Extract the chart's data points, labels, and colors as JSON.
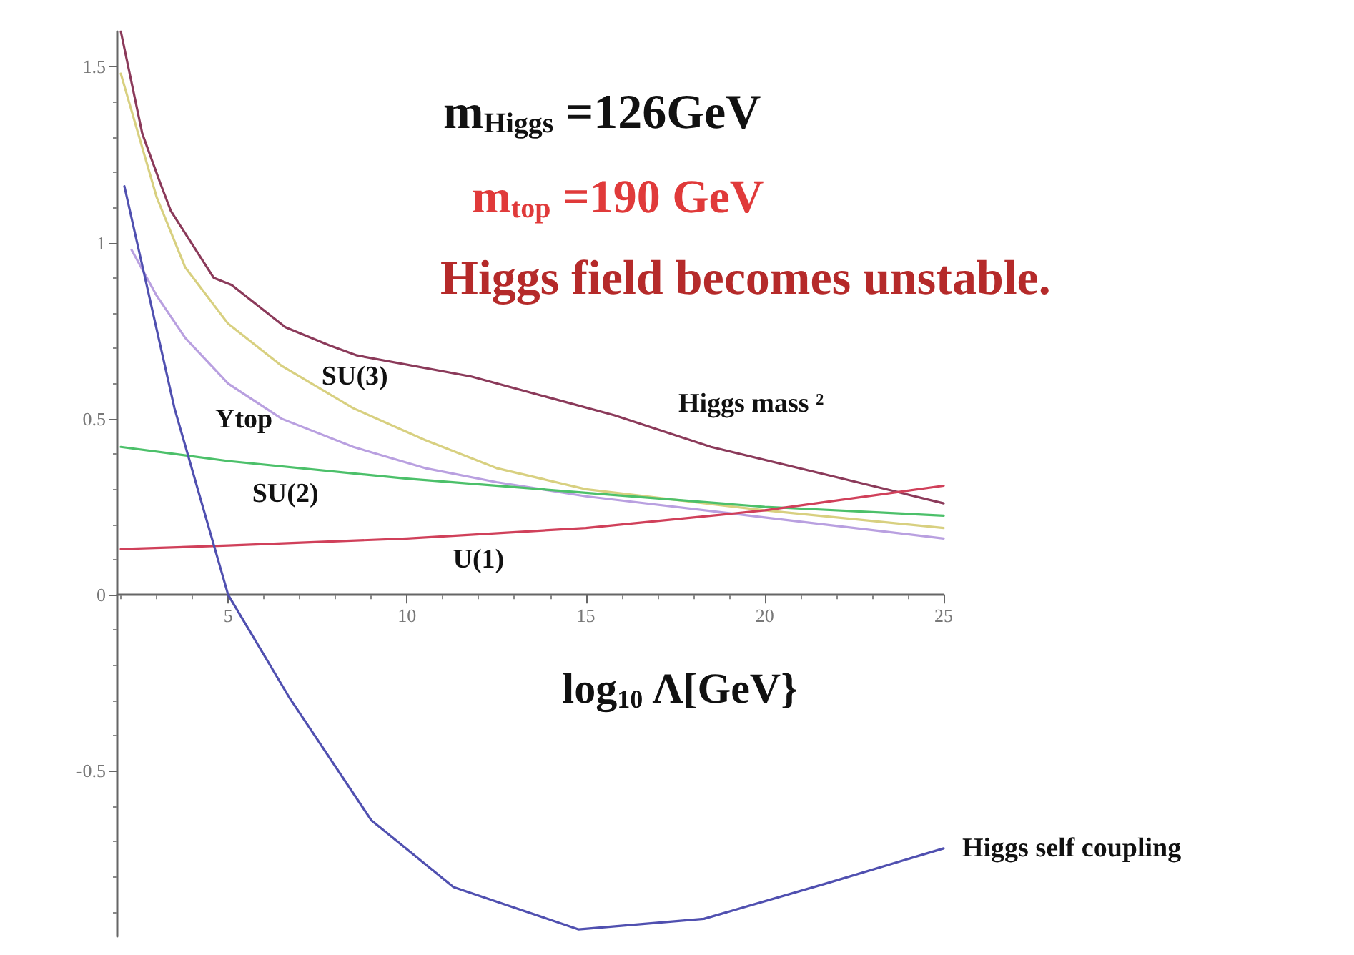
{
  "chart_data": {
    "type": "line",
    "title": "m$_{Higgs}$ =126GeV",
    "subtitle": "m$_{top}$ =190 GeV",
    "xlabel": "log$_{10}$ Λ[GeV}",
    "xlim": [
      1.9,
      25
    ],
    "xticks": [
      5,
      10,
      15,
      20,
      25
    ],
    "ylim": [
      -0.97,
      1.6
    ],
    "yticks": [
      -0.5,
      0,
      0.5,
      1,
      1.5
    ],
    "grid": false,
    "legend": false,
    "marker": "none",
    "line_style": "solid",
    "series": [
      {
        "name": "Higgs mass ²",
        "color": "#8b3a5a",
        "x": [
          2,
          2.6,
          3.1,
          3.4,
          4.6,
          5.1,
          6.6,
          7.8,
          8.6,
          11.8,
          15.8,
          18.5,
          23.8,
          25
        ],
        "values": [
          1.6,
          1.31,
          1.17,
          1.09,
          0.9,
          0.88,
          0.76,
          0.71,
          0.68,
          0.62,
          0.51,
          0.42,
          0.29,
          0.26
        ]
      },
      {
        "name": "SU(3)",
        "color": "#d8d080",
        "x": [
          2,
          3,
          3.8,
          5,
          6.5,
          8.5,
          10.5,
          12.5,
          15,
          20,
          25
        ],
        "values": [
          1.48,
          1.13,
          0.93,
          0.77,
          0.65,
          0.53,
          0.44,
          0.36,
          0.3,
          0.24,
          0.19
        ]
      },
      {
        "name": "Ytop",
        "color": "#b9a0e0",
        "x": [
          2.3,
          3,
          3.8,
          5,
          6.5,
          8.5,
          10.5,
          12.5,
          15,
          20,
          25
        ],
        "values": [
          0.98,
          0.85,
          0.73,
          0.6,
          0.5,
          0.42,
          0.36,
          0.32,
          0.28,
          0.22,
          0.16
        ]
      },
      {
        "name": "SU(2)",
        "color": "#4cc06a",
        "x": [
          2,
          5,
          10,
          15,
          20,
          25
        ],
        "values": [
          0.42,
          0.38,
          0.33,
          0.29,
          0.25,
          0.225
        ]
      },
      {
        "name": "U(1)",
        "color": "#d0405a",
        "x": [
          2,
          5,
          10,
          15,
          20,
          25
        ],
        "values": [
          0.13,
          0.14,
          0.16,
          0.19,
          0.24,
          0.31
        ]
      },
      {
        "name": "Higgs self coupling",
        "color": "#5050b0",
        "x": [
          2.1,
          3.5,
          5,
          6.7,
          9,
          11.3,
          14.8,
          18.3,
          21.7,
          25
        ],
        "values": [
          1.16,
          0.53,
          0,
          -0.29,
          -0.64,
          -0.83,
          -0.95,
          -0.92,
          -0.82,
          -0.72
        ]
      }
    ],
    "annotations": [
      "Higgs field becomes unstable."
    ]
  }
}
